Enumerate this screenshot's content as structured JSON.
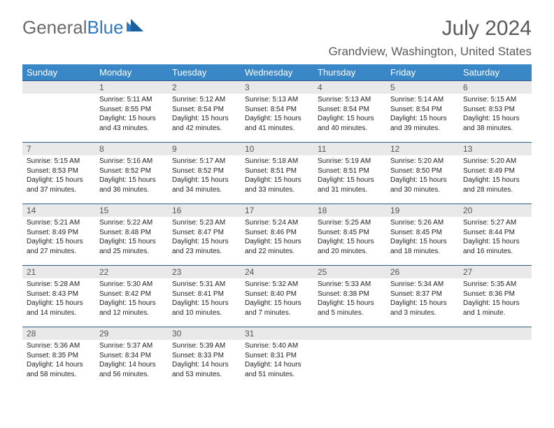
{
  "logo": {
    "part1": "General",
    "part2": "Blue"
  },
  "title": "July 2024",
  "location": "Grandview, Washington, United States",
  "colors": {
    "header_bg": "#3a87c8",
    "header_text": "#ffffff",
    "row_border": "#2f5c86",
    "daynum_bg": "#e9e9e9",
    "text_muted": "#5a5a5a",
    "logo_gray": "#6b6b6b",
    "logo_blue": "#2f7bbf"
  },
  "days_of_week": [
    "Sunday",
    "Monday",
    "Tuesday",
    "Wednesday",
    "Thursday",
    "Friday",
    "Saturday"
  ],
  "weeks": [
    [
      {
        "num": "",
        "lines": []
      },
      {
        "num": "1",
        "lines": [
          "Sunrise: 5:11 AM",
          "Sunset: 8:55 PM",
          "Daylight: 15 hours and 43 minutes."
        ]
      },
      {
        "num": "2",
        "lines": [
          "Sunrise: 5:12 AM",
          "Sunset: 8:54 PM",
          "Daylight: 15 hours and 42 minutes."
        ]
      },
      {
        "num": "3",
        "lines": [
          "Sunrise: 5:13 AM",
          "Sunset: 8:54 PM",
          "Daylight: 15 hours and 41 minutes."
        ]
      },
      {
        "num": "4",
        "lines": [
          "Sunrise: 5:13 AM",
          "Sunset: 8:54 PM",
          "Daylight: 15 hours and 40 minutes."
        ]
      },
      {
        "num": "5",
        "lines": [
          "Sunrise: 5:14 AM",
          "Sunset: 8:54 PM",
          "Daylight: 15 hours and 39 minutes."
        ]
      },
      {
        "num": "6",
        "lines": [
          "Sunrise: 5:15 AM",
          "Sunset: 8:53 PM",
          "Daylight: 15 hours and 38 minutes."
        ]
      }
    ],
    [
      {
        "num": "7",
        "lines": [
          "Sunrise: 5:15 AM",
          "Sunset: 8:53 PM",
          "Daylight: 15 hours and 37 minutes."
        ]
      },
      {
        "num": "8",
        "lines": [
          "Sunrise: 5:16 AM",
          "Sunset: 8:52 PM",
          "Daylight: 15 hours and 36 minutes."
        ]
      },
      {
        "num": "9",
        "lines": [
          "Sunrise: 5:17 AM",
          "Sunset: 8:52 PM",
          "Daylight: 15 hours and 34 minutes."
        ]
      },
      {
        "num": "10",
        "lines": [
          "Sunrise: 5:18 AM",
          "Sunset: 8:51 PM",
          "Daylight: 15 hours and 33 minutes."
        ]
      },
      {
        "num": "11",
        "lines": [
          "Sunrise: 5:19 AM",
          "Sunset: 8:51 PM",
          "Daylight: 15 hours and 31 minutes."
        ]
      },
      {
        "num": "12",
        "lines": [
          "Sunrise: 5:20 AM",
          "Sunset: 8:50 PM",
          "Daylight: 15 hours and 30 minutes."
        ]
      },
      {
        "num": "13",
        "lines": [
          "Sunrise: 5:20 AM",
          "Sunset: 8:49 PM",
          "Daylight: 15 hours and 28 minutes."
        ]
      }
    ],
    [
      {
        "num": "14",
        "lines": [
          "Sunrise: 5:21 AM",
          "Sunset: 8:49 PM",
          "Daylight: 15 hours and 27 minutes."
        ]
      },
      {
        "num": "15",
        "lines": [
          "Sunrise: 5:22 AM",
          "Sunset: 8:48 PM",
          "Daylight: 15 hours and 25 minutes."
        ]
      },
      {
        "num": "16",
        "lines": [
          "Sunrise: 5:23 AM",
          "Sunset: 8:47 PM",
          "Daylight: 15 hours and 23 minutes."
        ]
      },
      {
        "num": "17",
        "lines": [
          "Sunrise: 5:24 AM",
          "Sunset: 8:46 PM",
          "Daylight: 15 hours and 22 minutes."
        ]
      },
      {
        "num": "18",
        "lines": [
          "Sunrise: 5:25 AM",
          "Sunset: 8:45 PM",
          "Daylight: 15 hours and 20 minutes."
        ]
      },
      {
        "num": "19",
        "lines": [
          "Sunrise: 5:26 AM",
          "Sunset: 8:45 PM",
          "Daylight: 15 hours and 18 minutes."
        ]
      },
      {
        "num": "20",
        "lines": [
          "Sunrise: 5:27 AM",
          "Sunset: 8:44 PM",
          "Daylight: 15 hours and 16 minutes."
        ]
      }
    ],
    [
      {
        "num": "21",
        "lines": [
          "Sunrise: 5:28 AM",
          "Sunset: 8:43 PM",
          "Daylight: 15 hours and 14 minutes."
        ]
      },
      {
        "num": "22",
        "lines": [
          "Sunrise: 5:30 AM",
          "Sunset: 8:42 PM",
          "Daylight: 15 hours and 12 minutes."
        ]
      },
      {
        "num": "23",
        "lines": [
          "Sunrise: 5:31 AM",
          "Sunset: 8:41 PM",
          "Daylight: 15 hours and 10 minutes."
        ]
      },
      {
        "num": "24",
        "lines": [
          "Sunrise: 5:32 AM",
          "Sunset: 8:40 PM",
          "Daylight: 15 hours and 7 minutes."
        ]
      },
      {
        "num": "25",
        "lines": [
          "Sunrise: 5:33 AM",
          "Sunset: 8:38 PM",
          "Daylight: 15 hours and 5 minutes."
        ]
      },
      {
        "num": "26",
        "lines": [
          "Sunrise: 5:34 AM",
          "Sunset: 8:37 PM",
          "Daylight: 15 hours and 3 minutes."
        ]
      },
      {
        "num": "27",
        "lines": [
          "Sunrise: 5:35 AM",
          "Sunset: 8:36 PM",
          "Daylight: 15 hours and 1 minute."
        ]
      }
    ],
    [
      {
        "num": "28",
        "lines": [
          "Sunrise: 5:36 AM",
          "Sunset: 8:35 PM",
          "Daylight: 14 hours and 58 minutes."
        ]
      },
      {
        "num": "29",
        "lines": [
          "Sunrise: 5:37 AM",
          "Sunset: 8:34 PM",
          "Daylight: 14 hours and 56 minutes."
        ]
      },
      {
        "num": "30",
        "lines": [
          "Sunrise: 5:39 AM",
          "Sunset: 8:33 PM",
          "Daylight: 14 hours and 53 minutes."
        ]
      },
      {
        "num": "31",
        "lines": [
          "Sunrise: 5:40 AM",
          "Sunset: 8:31 PM",
          "Daylight: 14 hours and 51 minutes."
        ]
      },
      {
        "num": "",
        "lines": []
      },
      {
        "num": "",
        "lines": []
      },
      {
        "num": "",
        "lines": []
      }
    ]
  ]
}
